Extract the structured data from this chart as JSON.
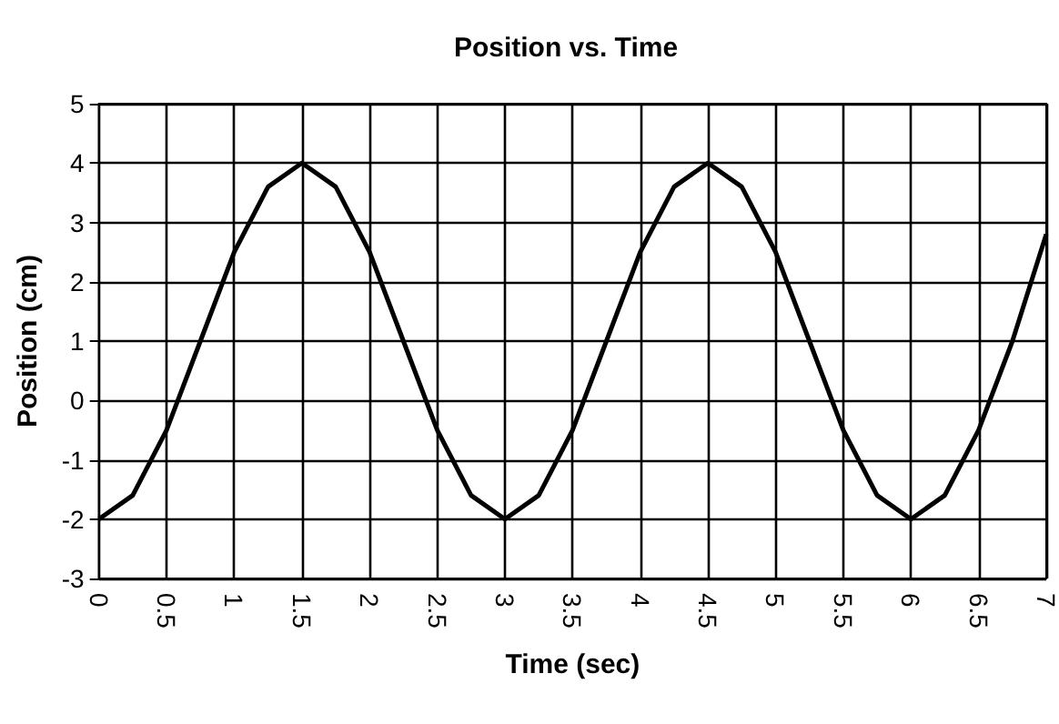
{
  "chart_data": {
    "type": "line",
    "title": "Position vs. Time",
    "xlabel": "Time (sec)",
    "ylabel": "Position (cm)",
    "x": [
      0,
      0.25,
      0.5,
      0.75,
      1,
      1.25,
      1.5,
      1.75,
      2,
      2.25,
      2.5,
      2.75,
      3,
      3.25,
      3.5,
      3.75,
      4,
      4.25,
      4.5,
      4.75,
      5,
      5.25,
      5.5,
      5.75,
      6,
      6.25,
      6.5,
      6.75,
      7
    ],
    "series": [
      {
        "color": "#000000",
        "values": [
          -2,
          -1.6,
          -0.5,
          1,
          2.5,
          3.6,
          4,
          3.6,
          2.5,
          1,
          -0.5,
          -1.6,
          -2,
          -1.6,
          -0.5,
          1,
          2.5,
          3.6,
          4,
          3.6,
          2.5,
          1,
          -0.5,
          -1.6,
          -2,
          -1.6,
          -0.5,
          1,
          2.8
        ]
      }
    ],
    "xlim": [
      0,
      7
    ],
    "xticks": [
      0,
      0.5,
      1,
      1.5,
      2,
      2.5,
      3,
      3.5,
      4,
      4.5,
      5,
      5.5,
      6,
      6.5,
      7
    ],
    "ylim": [
      -3,
      5
    ],
    "yticks": [
      -3,
      -2,
      -1,
      0,
      1,
      2,
      3,
      4,
      5
    ],
    "grid": true,
    "marker": "none",
    "line_style": "solid"
  }
}
